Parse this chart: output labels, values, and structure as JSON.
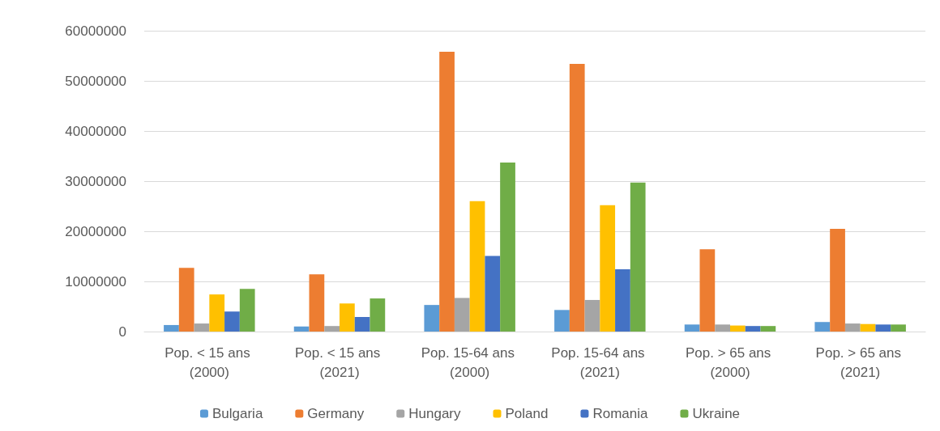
{
  "chart_data": {
    "type": "bar",
    "categories": [
      "Pop. < 15 ans (2000)",
      "Pop. < 15 ans (2021)",
      "Pop. 15-64 ans (2000)",
      "Pop. 15-64 ans (2021)",
      "Pop. > 65 ans (2000)",
      "Pop. > 65 ans (2021)"
    ],
    "series": [
      {
        "name": "Bulgaria",
        "color": "#5b9bd5",
        "values": [
          1300000,
          1000000,
          5300000,
          4300000,
          1400000,
          1900000
        ]
      },
      {
        "name": "Germany",
        "color": "#ed7d31",
        "values": [
          12700000,
          11400000,
          55800000,
          53400000,
          16400000,
          20500000
        ]
      },
      {
        "name": "Hungary",
        "color": "#a5a5a5",
        "values": [
          1600000,
          1100000,
          6700000,
          6300000,
          1400000,
          1600000
        ]
      },
      {
        "name": "Poland",
        "color": "#ffc000",
        "values": [
          7400000,
          5600000,
          26000000,
          25200000,
          1200000,
          1500000
        ]
      },
      {
        "name": "Romania",
        "color": "#4472c4",
        "values": [
          4000000,
          2900000,
          15100000,
          12400000,
          1100000,
          1400000
        ]
      },
      {
        "name": "Ukraine",
        "color": "#70ad47",
        "values": [
          8500000,
          6600000,
          33700000,
          29700000,
          1100000,
          1400000
        ]
      }
    ],
    "ylim": [
      0,
      60000000
    ],
    "yticks": [
      0,
      10000000,
      20000000,
      30000000,
      40000000,
      50000000,
      60000000
    ],
    "grid": "y",
    "legend": "bottom"
  }
}
